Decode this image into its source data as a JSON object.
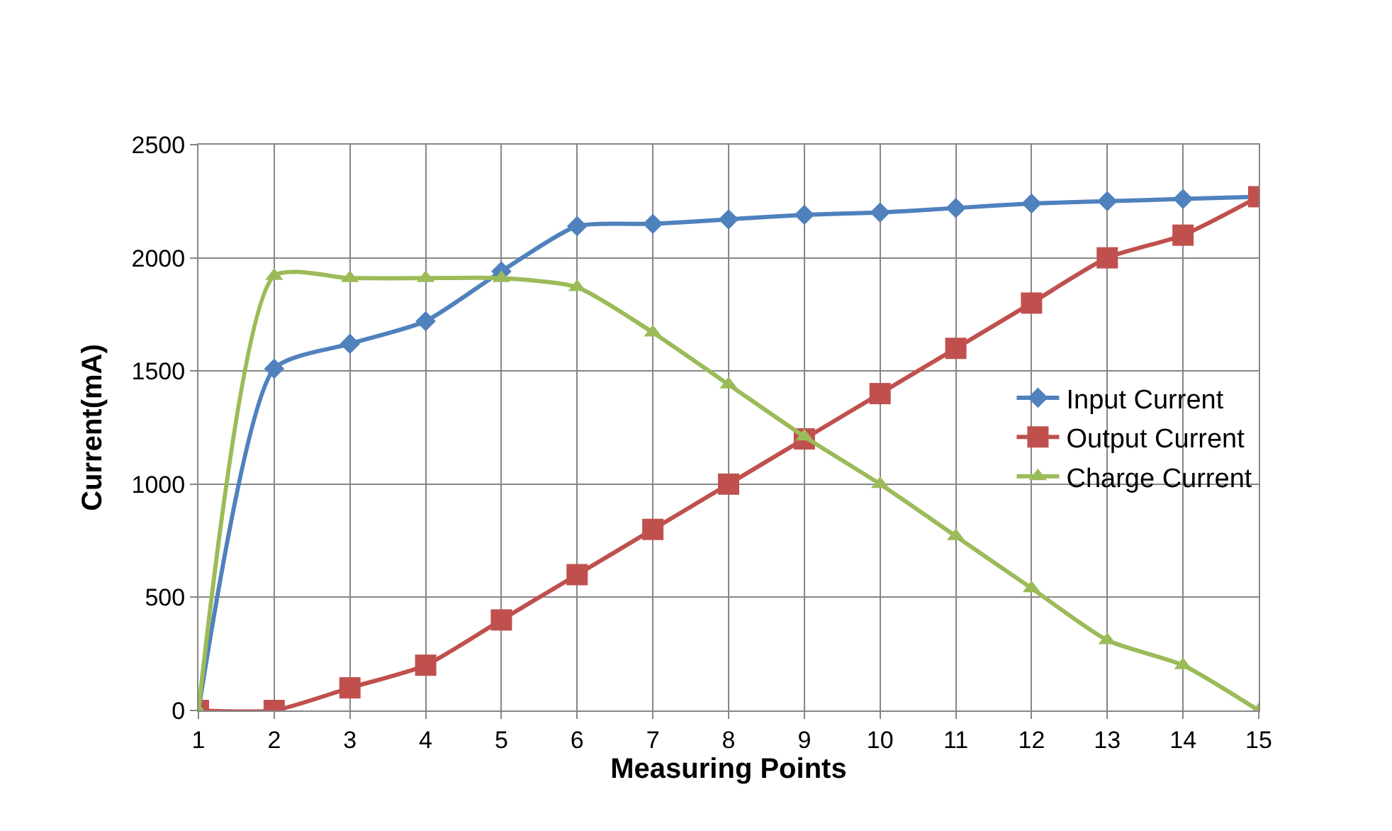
{
  "chart_data": {
    "type": "line",
    "xlabel": "Measuring Points",
    "ylabel": "Current(mA)",
    "x": [
      1,
      2,
      3,
      4,
      5,
      6,
      7,
      8,
      9,
      10,
      11,
      12,
      13,
      14,
      15
    ],
    "xlim": [
      1,
      15
    ],
    "xticks": [
      1,
      2,
      3,
      4,
      5,
      6,
      7,
      8,
      9,
      10,
      11,
      12,
      13,
      14,
      15
    ],
    "ylim": [
      0,
      2500
    ],
    "yticks": [
      0,
      500,
      1000,
      1500,
      2000,
      2500
    ],
    "grid": true,
    "legend": "right",
    "series": [
      {
        "name": "Input Current",
        "color": "#4f81bd",
        "marker": "diamond",
        "values": [
          0,
          1510,
          1620,
          1720,
          1940,
          2140,
          2150,
          2170,
          2190,
          2200,
          2220,
          2240,
          2250,
          2260,
          2270
        ]
      },
      {
        "name": "Output Current",
        "color": "#c0504d",
        "marker": "square",
        "values": [
          0,
          0,
          100,
          200,
          400,
          600,
          800,
          1000,
          1200,
          1400,
          1600,
          1800,
          2000,
          2100,
          2270
        ]
      },
      {
        "name": "Charge Current",
        "color": "#9bbb59",
        "marker": "triangle",
        "values": [
          0,
          1920,
          1910,
          1910,
          1910,
          1870,
          1670,
          1440,
          1210,
          1000,
          770,
          540,
          310,
          200,
          0
        ]
      }
    ]
  }
}
